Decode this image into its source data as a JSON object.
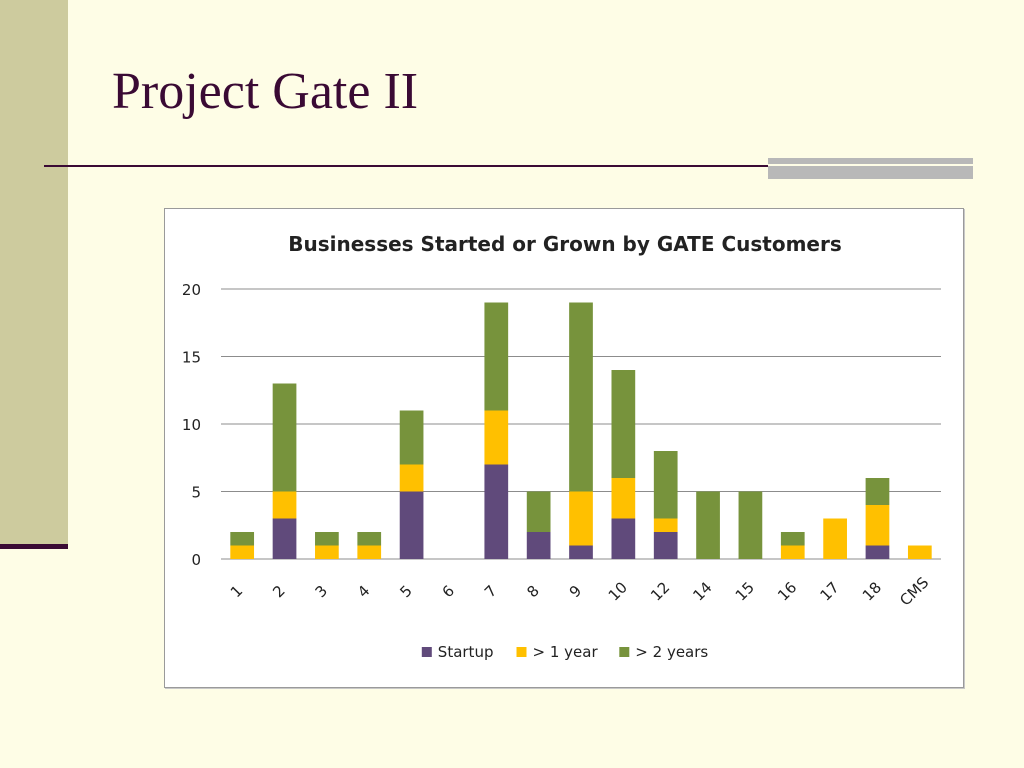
{
  "slide": {
    "title": "Project Gate II"
  },
  "chart_data": {
    "type": "bar",
    "stacked": true,
    "title": "Businesses Started or Grown by GATE Customers",
    "categories": [
      "1",
      "2",
      "3",
      "4",
      "5",
      "6",
      "7",
      "8",
      "9",
      "10",
      "12",
      "14",
      "15",
      "16",
      "17",
      "18",
      "CMS"
    ],
    "series": [
      {
        "name": "Startup",
        "color": "#604a7b",
        "values": [
          0,
          3,
          0,
          0,
          5,
          0,
          7,
          2,
          1,
          3,
          2,
          0,
          0,
          0,
          0,
          1,
          0
        ]
      },
      {
        "name": "> 1 year",
        "color": "#ffc000",
        "values": [
          1,
          2,
          1,
          1,
          2,
          0,
          4,
          0,
          4,
          3,
          1,
          0,
          0,
          1,
          3,
          3,
          1
        ]
      },
      {
        "name": "> 2 years",
        "color": "#77933c",
        "values": [
          1,
          8,
          1,
          1,
          4,
          0,
          8,
          3,
          14,
          8,
          5,
          5,
          5,
          1,
          0,
          2,
          0
        ]
      }
    ],
    "ylim": [
      0,
      20
    ],
    "yticks": [
      0,
      5,
      10,
      15,
      20
    ],
    "grid": true,
    "legend": "bottom"
  }
}
